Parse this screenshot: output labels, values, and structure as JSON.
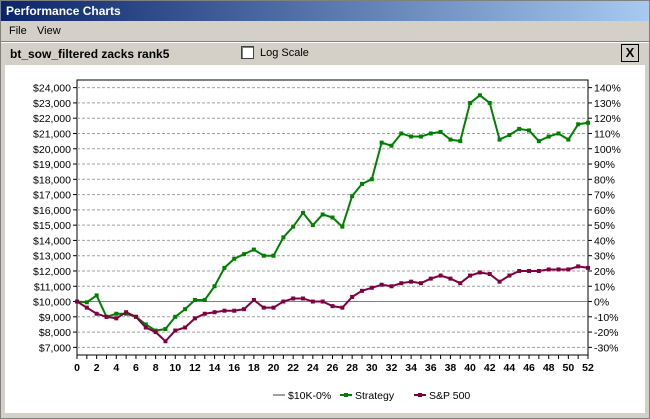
{
  "window": {
    "title": "Performance Charts"
  },
  "menu": {
    "items": [
      "File",
      "View"
    ]
  },
  "toolbar": {
    "chart_name": "bt_sow_filtered zacks rank5",
    "log_scale_label": "Log Scale",
    "log_scale_checked": false,
    "close_label": "X"
  },
  "colors": {
    "baseline": "#808080",
    "strategy": "#008000",
    "sp500": "#800040",
    "grid": "#a0a0a0"
  },
  "chart_data": {
    "type": "line",
    "x": [
      0,
      1,
      2,
      3,
      4,
      5,
      6,
      7,
      8,
      9,
      10,
      11,
      12,
      13,
      14,
      15,
      16,
      17,
      18,
      19,
      20,
      21,
      22,
      23,
      24,
      25,
      26,
      27,
      28,
      29,
      30,
      31,
      32,
      33,
      34,
      35,
      36,
      37,
      38,
      39,
      40,
      41,
      42,
      43,
      44,
      45,
      46,
      47,
      48,
      49,
      50,
      51,
      52
    ],
    "x_ticks": [
      "0",
      "2",
      "4",
      "6",
      "8",
      "10",
      "12",
      "14",
      "16",
      "18",
      "20",
      "22",
      "24",
      "26",
      "28",
      "30",
      "32",
      "34",
      "36",
      "38",
      "40",
      "42",
      "44",
      "46",
      "48",
      "50",
      "52"
    ],
    "ylim_left": [
      6500,
      24500
    ],
    "y_ticks_left": [
      "$7,000",
      "$8,000",
      "$9,000",
      "$10,000",
      "$11,000",
      "$12,000",
      "$13,000",
      "$14,000",
      "$15,000",
      "$16,000",
      "$17,000",
      "$18,000",
      "$19,000",
      "$20,000",
      "$21,000",
      "$22,000",
      "$23,000",
      "$24,000"
    ],
    "y_ticks_right": [
      "-30%",
      "-20%",
      "-10%",
      "0%",
      "10%",
      "20%",
      "30%",
      "40%",
      "50%",
      "60%",
      "70%",
      "80%",
      "90%",
      "100%",
      "110%",
      "120%",
      "130%",
      "140%"
    ],
    "grid": true,
    "legend_position": "bottom",
    "series": [
      {
        "name": "$10K-0%",
        "values": [
          10000,
          10000,
          10000,
          10000,
          10000,
          10000,
          10000,
          10000,
          10000,
          10000,
          10000,
          10000,
          10000,
          10000,
          10000,
          10000,
          10000,
          10000,
          10000,
          10000,
          10000,
          10000,
          10000,
          10000,
          10000,
          10000,
          10000,
          10000,
          10000,
          10000,
          10000,
          10000,
          10000,
          10000,
          10000,
          10000,
          10000,
          10000,
          10000,
          10000,
          10000,
          10000,
          10000,
          10000,
          10000,
          10000,
          10000,
          10000,
          10000,
          10000,
          10000,
          10000,
          10000
        ]
      },
      {
        "name": "Strategy",
        "values": [
          10000,
          9950,
          10400,
          9000,
          9200,
          9200,
          9000,
          8500,
          8100,
          8200,
          9000,
          9500,
          10100,
          10100,
          11000,
          12200,
          12800,
          13100,
          13400,
          13000,
          13000,
          14200,
          14900,
          15800,
          15000,
          15700,
          15500,
          14900,
          16900,
          17700,
          18000,
          20400,
          20200,
          21000,
          20800,
          20800,
          21000,
          21100,
          20600,
          20500,
          23000,
          23500,
          23000,
          20600,
          20900,
          21300,
          21200,
          20500,
          20800,
          21000,
          20600,
          21600,
          21700
        ]
      },
      {
        "name": "S&P 500",
        "values": [
          10000,
          9600,
          9200,
          9000,
          8900,
          9300,
          9000,
          8300,
          8000,
          7400,
          8100,
          8300,
          8900,
          9200,
          9300,
          9400,
          9400,
          9500,
          10100,
          9600,
          9600,
          10000,
          10200,
          10200,
          10000,
          10000,
          9700,
          9600,
          10300,
          10700,
          10900,
          11100,
          11000,
          11200,
          11300,
          11200,
          11500,
          11700,
          11500,
          11200,
          11700,
          11900,
          11800,
          11300,
          11700,
          12000,
          12000,
          12000,
          12100,
          12100,
          12100,
          12300,
          12200
        ]
      }
    ]
  }
}
